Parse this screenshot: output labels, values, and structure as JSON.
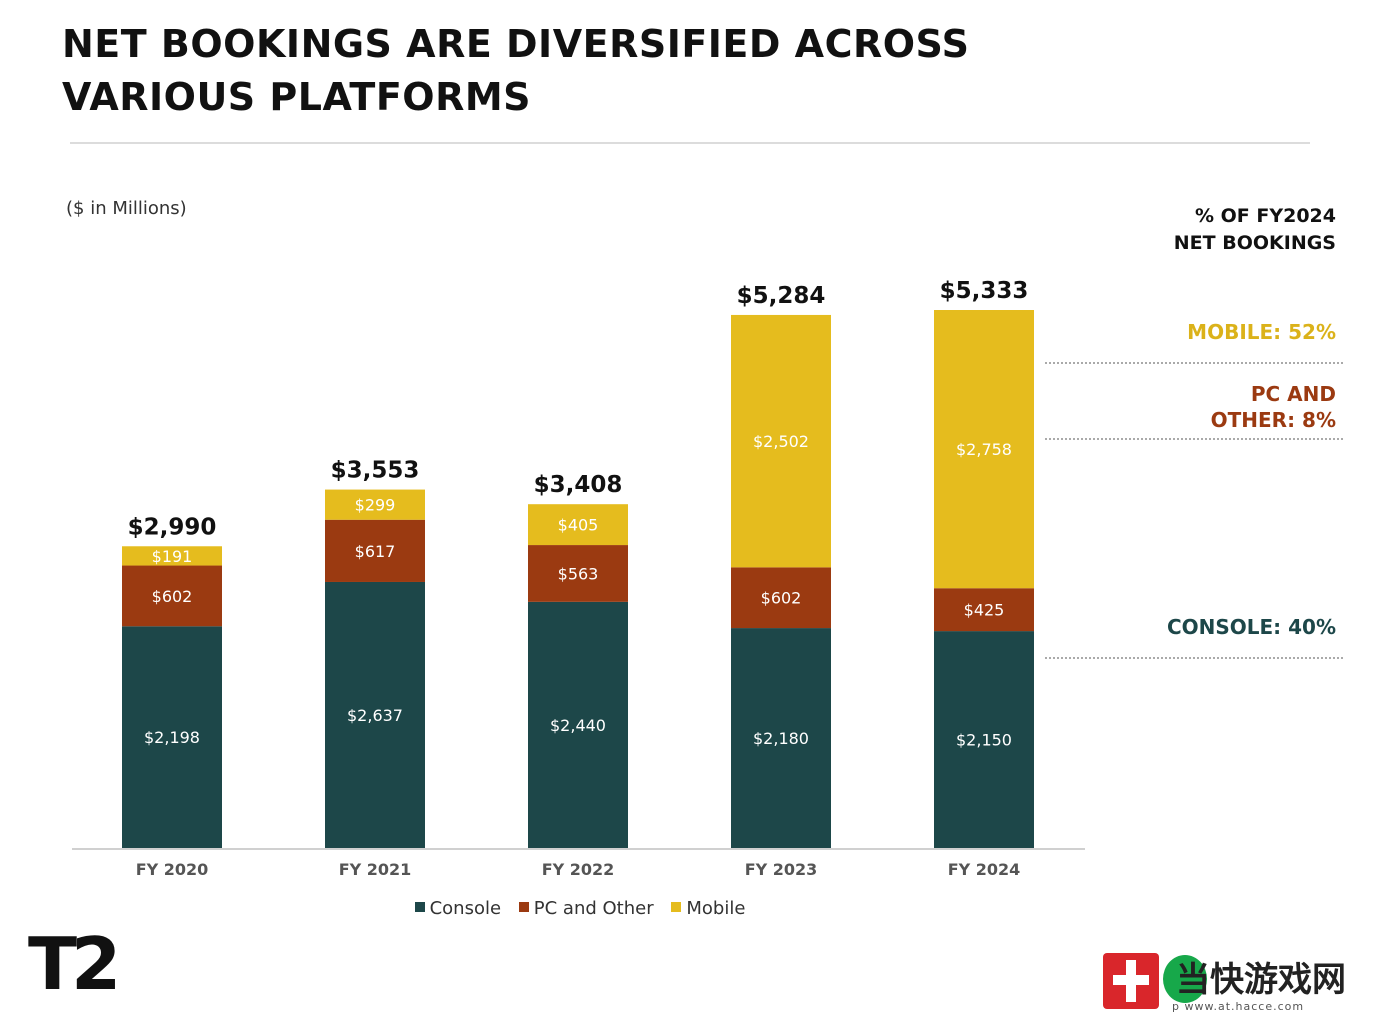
{
  "header": {
    "title_line1": "NET BOOKINGS ARE DIVERSIFIED ACROSS",
    "title_line2": "VARIOUS PLATFORMS",
    "unit_note": "($ in Millions)"
  },
  "share_panel": {
    "heading_line1": "% OF FY2024",
    "heading_line2": "NET BOOKINGS",
    "mobile": "MOBILE: 52%",
    "pc_line1": "PC AND",
    "pc_line2": "OTHER: 8%",
    "console": "CONSOLE: 40%"
  },
  "chart_data": {
    "type": "bar",
    "stacked": true,
    "categories": [
      "FY 2020",
      "FY 2021",
      "FY 2022",
      "FY 2023",
      "FY 2024"
    ],
    "series": [
      {
        "name": "Console",
        "color": "#1d4749",
        "values": [
          2198,
          2637,
          2440,
          2180,
          2150
        ],
        "labels": [
          "$2,198",
          "$2,637",
          "$2,440",
          "$2,180",
          "$2,150"
        ]
      },
      {
        "name": "PC and Other",
        "color": "#9b3a11",
        "values": [
          602,
          617,
          563,
          602,
          425
        ],
        "labels": [
          "$602",
          "$617",
          "$563",
          "$602",
          "$425"
        ]
      },
      {
        "name": "Mobile",
        "color": "#e5bc1e",
        "values": [
          191,
          299,
          405,
          2502,
          2758
        ],
        "labels": [
          "$191",
          "$299",
          "$405",
          "$2,502",
          "$2,758"
        ]
      }
    ],
    "totals": [
      2990,
      3553,
      3408,
      5284,
      5333
    ],
    "total_labels": [
      "$2,990",
      "$3,553",
      "$3,408",
      "$5,284",
      "$5,333"
    ],
    "ylim": [
      0,
      5333
    ],
    "grid": false,
    "legend_position": "bottom"
  },
  "legend": {
    "console": "Console",
    "pc": "PC and Other",
    "mobile": "Mobile"
  },
  "colors": {
    "console": "#1d4749",
    "pc": "#9b3a11",
    "mobile": "#e5bc1e",
    "mobile_text": "#dbb21a",
    "pc_text": "#9b3a11",
    "console_text": "#1d4749"
  },
  "branding": {
    "logo": "T2",
    "watermark_text": "当快游戏网",
    "watermark_url": "p www.at.hacce.com"
  }
}
